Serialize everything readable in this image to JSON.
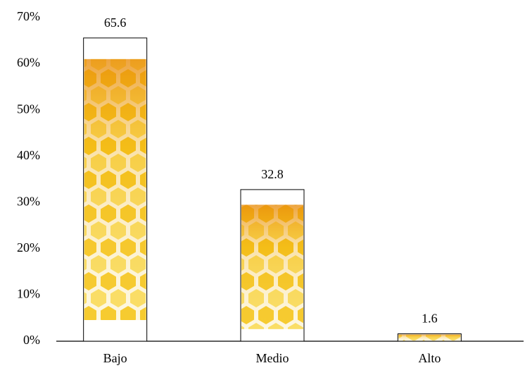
{
  "chart_data": {
    "type": "bar",
    "categories": [
      "Bajo",
      "Medio",
      "Alto"
    ],
    "values": [
      65.6,
      32.8,
      1.6
    ],
    "color": "#f5c518",
    "ylim": [
      0,
      70
    ],
    "yticks": [
      {
        "value": 0,
        "label": "0%"
      },
      {
        "value": 10,
        "label": "10%"
      },
      {
        "value": 20,
        "label": "20%"
      },
      {
        "value": 30,
        "label": "30%"
      },
      {
        "value": 40,
        "label": "40%"
      },
      {
        "value": 50,
        "label": "50%"
      },
      {
        "value": 60,
        "label": "60%"
      },
      {
        "value": 70,
        "label": "70%"
      }
    ],
    "grid": false
  }
}
